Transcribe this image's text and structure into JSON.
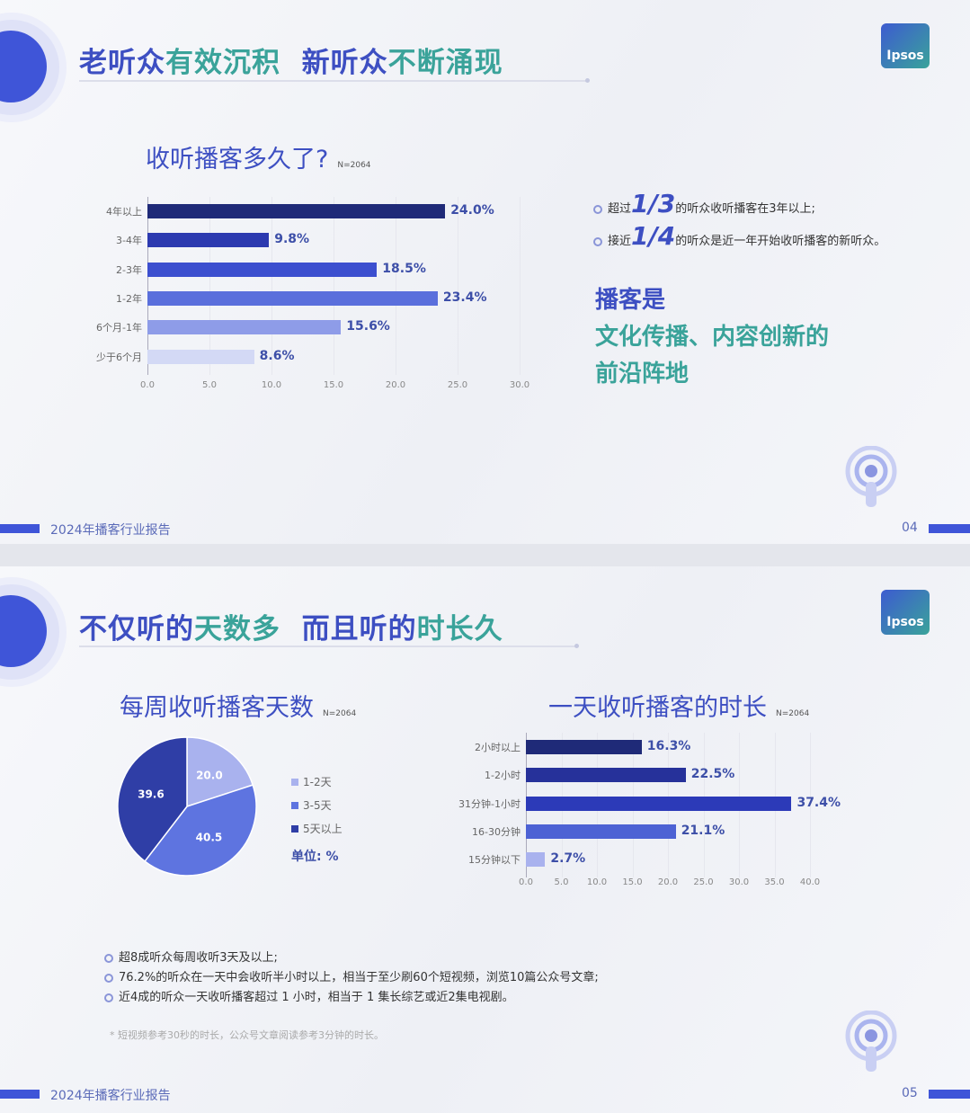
{
  "report_name": "2024年播客行业报告",
  "logo": "Ipsos",
  "slide1": {
    "page": "04",
    "title": {
      "p1": "老听众",
      "p2": "有效沉积",
      "p3": "新听众",
      "p4": "不断涌现"
    },
    "chart_title": "收听播客多久了?",
    "sample": "N=2064",
    "bullets": [
      {
        "pre": "超过",
        "big": "1/3",
        "post": "的听众收听播客在3年以上;"
      },
      {
        "pre": "接近",
        "big": "1/4",
        "post": "的听众是近一年开始收听播客的新听众。"
      }
    ],
    "slogan": {
      "line1": "播客是",
      "line2": "文化传播、内容创新的",
      "line3": "前沿阵地"
    }
  },
  "slide2": {
    "page": "05",
    "title": {
      "p1": "不仅听的",
      "p2": "天数多",
      "p3": "而且听的",
      "p4": "时长久"
    },
    "pie_title": "每周收听播客天数",
    "pie_sample": "N=2064",
    "bar_title": "一天收听播客的时长",
    "bar_sample": "N=2064",
    "unit": "单位: %",
    "bullets": [
      "超8成听众每周收听3天及以上;",
      "76.2%的听众在一天中会收听半小时以上，相当于至少刷60个短视频，浏览10篇公众号文章;",
      "近4成的听众一天收听播客超过 1 小时，相当于 1 集长综艺或近2集电视剧。"
    ],
    "note": "* 短视频参考30秒的时长，公众号文章阅读参考3分钟的时长。"
  },
  "chart_data": [
    {
      "type": "bar",
      "orientation": "horizontal",
      "categories": [
        "4年以上",
        "3-4年",
        "2-3年",
        "1-2年",
        "6个月-1年",
        "少于6个月"
      ],
      "values": [
        24.0,
        9.8,
        18.5,
        23.4,
        15.6,
        8.6
      ],
      "value_labels": [
        "24.0%",
        "9.8%",
        "18.5%",
        "23.4%",
        "15.6%",
        "8.6%"
      ],
      "colors": [
        "#1f2a78",
        "#2c3ab0",
        "#3c4fcf",
        "#5a6fdc",
        "#8e9ce8",
        "#d3d9f5"
      ],
      "xlim": [
        0,
        30
      ],
      "ticks": [
        "0.0",
        "5.0",
        "10.0",
        "15.0",
        "20.0",
        "25.0",
        "30.0"
      ]
    },
    {
      "type": "pie",
      "categories": [
        "1-2天",
        "3-5天",
        "5天以上"
      ],
      "values": [
        20.0,
        40.5,
        39.6
      ],
      "value_labels": [
        "20.0",
        "40.5",
        "39.6"
      ],
      "colors": [
        "#a9b2ee",
        "#5e74e0",
        "#2f3ea6"
      ]
    },
    {
      "type": "bar",
      "orientation": "horizontal",
      "categories": [
        "2小时以上",
        "1-2小时",
        "31分钟-1小时",
        "16-30分钟",
        "15分钟以下"
      ],
      "values": [
        16.3,
        22.5,
        37.4,
        21.1,
        2.7
      ],
      "value_labels": [
        "16.3%",
        "22.5%",
        "37.4%",
        "21.1%",
        "2.7%"
      ],
      "colors": [
        "#1f2a78",
        "#26319a",
        "#2c3ab8",
        "#4d62d4",
        "#a9b2ee"
      ],
      "xlim": [
        0,
        40
      ],
      "ticks": [
        "0.0",
        "5.0",
        "10.0",
        "15.0",
        "20.0",
        "25.0",
        "30.0",
        "35.0",
        "40.0"
      ]
    }
  ]
}
